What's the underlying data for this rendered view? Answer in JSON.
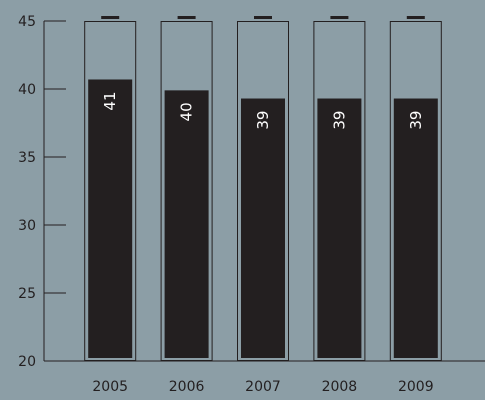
{
  "chart_data": {
    "type": "bar",
    "style": "battery",
    "categories": [
      "2005",
      "2006",
      "2007",
      "2008",
      "2009"
    ],
    "values": [
      40.7,
      39.9,
      39.3,
      39.3,
      39.3
    ],
    "data_labels": [
      "41",
      "40",
      "39",
      "39",
      "39"
    ],
    "title": "",
    "xlabel": "",
    "ylabel": "",
    "ylim": [
      20,
      45
    ],
    "yticks": [
      20,
      25,
      30,
      35,
      40,
      45
    ],
    "grid": false,
    "colors": {
      "background": "#8c9ea6",
      "bar_fill": "#231f20",
      "battery_outline": "#231f20",
      "battery_cap": "#231f20",
      "axis": "#231f20",
      "tick_label": "#231f20",
      "data_label": "#ffffff"
    }
  }
}
